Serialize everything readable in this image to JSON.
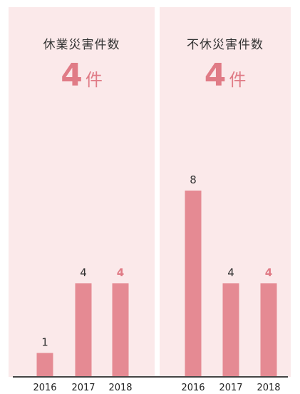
{
  "colors": {
    "panel_bg": "#fbe9ea",
    "bar": "#e58a93",
    "accent": "#e07b86",
    "value_text": "#333333",
    "axis": "#444444"
  },
  "chart_data": [
    {
      "type": "bar",
      "title": "休業災害件数",
      "kpi": {
        "value": "4",
        "unit": "件"
      },
      "categories": [
        "2016",
        "2017",
        "2018"
      ],
      "values": [
        1,
        4,
        4
      ],
      "value_labels": [
        "1",
        "4",
        "4"
      ],
      "highlight_index": 2,
      "ylim": [
        0,
        8
      ],
      "grid": false
    },
    {
      "type": "bar",
      "title": "不休災害件数",
      "kpi": {
        "value": "4",
        "unit": "件"
      },
      "categories": [
        "2016",
        "2017",
        "2018"
      ],
      "values": [
        8,
        4,
        4
      ],
      "value_labels": [
        "8",
        "4",
        "4"
      ],
      "highlight_index": 2,
      "ylim": [
        0,
        8
      ],
      "grid": false
    }
  ]
}
